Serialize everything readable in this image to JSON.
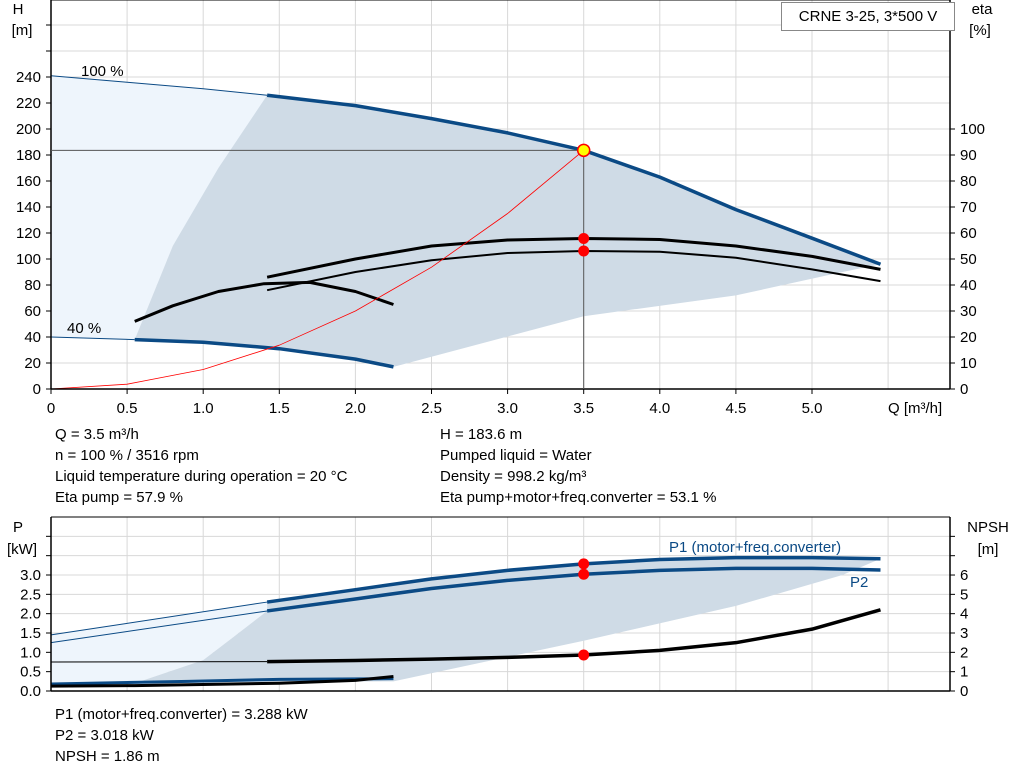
{
  "title_box": "CRNE 3-25, 3*500 V",
  "chart_data": [
    {
      "type": "line",
      "name_area": "qh",
      "xlabel": "Q [m³/h]",
      "ylabel_left": [
        "H",
        "[m]"
      ],
      "ylabel_right": [
        "eta",
        "[%]"
      ],
      "xlim": [
        0,
        5.9
      ],
      "ylim_left": [
        0,
        300
      ],
      "ylim_right": [
        0,
        115
      ],
      "xticks": [
        "0",
        "0.5",
        "1.0",
        "1.5",
        "2.0",
        "2.5",
        "3.0",
        "3.5",
        "4.0",
        "4.5",
        "5.0"
      ],
      "yticks_left": [
        "0",
        "20",
        "40",
        "60",
        "80",
        "100",
        "120",
        "140",
        "160",
        "180",
        "200",
        "220",
        "240"
      ],
      "yticks_right": [
        "0",
        "10",
        "20",
        "30",
        "40",
        "50",
        "60",
        "70",
        "80",
        "90",
        "100"
      ],
      "grid": true,
      "labels": {
        "speed_max": "100 %",
        "speed_min": "40 %"
      },
      "series": [
        {
          "role": "H_100",
          "color": "#0b4a85",
          "points": [
            [
              0,
              241
            ],
            [
              0.5,
              236
            ],
            [
              1.0,
              231
            ],
            [
              1.42,
              226
            ],
            [
              2.0,
              218
            ],
            [
              2.5,
              208
            ],
            [
              3.0,
              197
            ],
            [
              3.5,
              183.6
            ],
            [
              4.0,
              163
            ],
            [
              4.5,
              138
            ],
            [
              5.0,
              116
            ],
            [
              5.45,
              96
            ]
          ],
          "thin_until": 1.42
        },
        {
          "role": "H_40",
          "color": "#0b4a85",
          "points": [
            [
              0,
              40
            ],
            [
              0.55,
              38
            ],
            [
              1.0,
              36
            ],
            [
              1.5,
              31
            ],
            [
              2.0,
              23
            ],
            [
              2.25,
              17
            ]
          ],
          "thin_until": 0.55
        },
        {
          "role": "eta_pump",
          "color": "#000",
          "axis": "right",
          "points": [
            [
              1.42,
              43
            ],
            [
              2.0,
              50
            ],
            [
              2.5,
              55
            ],
            [
              3.0,
              57.3
            ],
            [
              3.5,
              57.9
            ],
            [
              4.0,
              57.5
            ],
            [
              4.5,
              55
            ],
            [
              5.0,
              51
            ],
            [
              5.45,
              46
            ]
          ]
        },
        {
          "role": "eta_total",
          "color": "#000",
          "axis": "right",
          "points": [
            [
              1.42,
              38
            ],
            [
              2.0,
              45
            ],
            [
              2.5,
              49.5
            ],
            [
              3.0,
              52.3
            ],
            [
              3.5,
              53.1
            ],
            [
              4.0,
              52.8
            ],
            [
              4.5,
              50.5
            ],
            [
              5.0,
              46
            ],
            [
              5.45,
              41.5
            ]
          ]
        },
        {
          "role": "eta_pump_40",
          "color": "#000",
          "axis": "right",
          "points": [
            [
              0.55,
              26
            ],
            [
              0.8,
              32
            ],
            [
              1.1,
              37.5
            ],
            [
              1.4,
              40.5
            ],
            [
              1.7,
              41
            ],
            [
              2.0,
              37.5
            ],
            [
              2.25,
              32.5
            ]
          ]
        },
        {
          "role": "system_curve",
          "color": "#ff0000",
          "points": [
            [
              0,
              0
            ],
            [
              0.5,
              3.7
            ],
            [
              1.0,
              15
            ],
            [
              1.5,
              33.7
            ],
            [
              2.0,
              60
            ],
            [
              2.5,
              93.7
            ],
            [
              3.0,
              135
            ],
            [
              3.5,
              183.6
            ]
          ]
        }
      ],
      "operating_point": {
        "Q": 3.5,
        "H": 183.6,
        "eta_pump": 57.9,
        "eta_total": 53.1
      },
      "operating_area": [
        [
          1.42,
          226
        ],
        [
          2.0,
          218
        ],
        [
          2.5,
          208
        ],
        [
          3.0,
          197
        ],
        [
          3.5,
          183.6
        ],
        [
          4.0,
          163
        ],
        [
          4.5,
          138
        ],
        [
          5.0,
          116
        ],
        [
          5.45,
          96
        ],
        [
          5.2,
          90
        ],
        [
          4.5,
          72
        ],
        [
          3.5,
          56
        ],
        [
          2.25,
          17
        ],
        [
          2.0,
          23
        ],
        [
          1.5,
          31
        ],
        [
          1.0,
          36
        ],
        [
          0.55,
          38
        ],
        [
          0.8,
          110
        ],
        [
          1.1,
          170
        ],
        [
          1.42,
          226
        ]
      ]
    },
    {
      "type": "line",
      "name_area": "power",
      "ylabel_left": [
        "P",
        "[kW]"
      ],
      "ylabel_right": [
        "NPSH",
        "[m]"
      ],
      "xlim": [
        0,
        5.9
      ],
      "ylim_left": [
        0,
        4.5
      ],
      "ylim_right": [
        0,
        9
      ],
      "yticks_left": [
        "0.0",
        "0.5",
        "1.0",
        "1.5",
        "2.0",
        "2.5",
        "3.0"
      ],
      "yticks_right": [
        "0",
        "1",
        "2",
        "3",
        "4",
        "5",
        "6"
      ],
      "labels": {
        "p1": "P1 (motor+freq.converter)",
        "p2": "P2"
      },
      "series": [
        {
          "role": "P1",
          "color": "#0b4a85",
          "points": [
            [
              0,
              1.45
            ],
            [
              1.42,
              2.3
            ],
            [
              2.0,
              2.62
            ],
            [
              2.5,
              2.9
            ],
            [
              3.0,
              3.12
            ],
            [
              3.5,
              3.288
            ],
            [
              4.0,
              3.4
            ],
            [
              4.5,
              3.45
            ],
            [
              5.0,
              3.45
            ],
            [
              5.45,
              3.42
            ]
          ],
          "thin_until": 1.42
        },
        {
          "role": "P2",
          "color": "#0b4a85",
          "points": [
            [
              0,
              1.25
            ],
            [
              1.42,
              2.07
            ],
            [
              2.0,
              2.38
            ],
            [
              2.5,
              2.65
            ],
            [
              3.0,
              2.86
            ],
            [
              3.5,
              3.018
            ],
            [
              4.0,
              3.12
            ],
            [
              4.5,
              3.17
            ],
            [
              5.0,
              3.17
            ],
            [
              5.45,
              3.13
            ]
          ],
          "thin_until": 1.42
        },
        {
          "role": "NPSH",
          "color": "#000",
          "axis": "right",
          "points": [
            [
              0,
              1.5
            ],
            [
              1.42,
              1.52
            ],
            [
              2.0,
              1.58
            ],
            [
              2.5,
              1.65
            ],
            [
              3.0,
              1.74
            ],
            [
              3.5,
              1.86
            ],
            [
              4.0,
              2.1
            ],
            [
              4.5,
              2.5
            ],
            [
              5.0,
              3.2
            ],
            [
              5.45,
              4.2
            ]
          ],
          "thin_until": 1.42
        },
        {
          "role": "P1_40",
          "color": "#0b4a85",
          "points": [
            [
              0,
              0.18
            ],
            [
              0.9,
              0.25
            ],
            [
              1.5,
              0.3
            ],
            [
              2.25,
              0.32
            ]
          ]
        },
        {
          "role": "NPSH_40",
          "color": "#000",
          "axis": "right",
          "points": [
            [
              0,
              0.25
            ],
            [
              0.55,
              0.28
            ],
            [
              1.5,
              0.4
            ],
            [
              2.0,
              0.55
            ],
            [
              2.25,
              0.75
            ]
          ]
        }
      ],
      "operating_point": {
        "Q": 3.5,
        "P1": 3.288,
        "P2": 3.018,
        "NPSH": 1.86
      },
      "operating_area": [
        [
          1.42,
          2.3
        ],
        [
          2.0,
          2.62
        ],
        [
          2.5,
          2.9
        ],
        [
          3.0,
          3.12
        ],
        [
          3.5,
          3.288
        ],
        [
          4.0,
          3.4
        ],
        [
          4.5,
          3.45
        ],
        [
          5.0,
          3.45
        ],
        [
          5.45,
          3.42
        ],
        [
          5.2,
          3.0
        ],
        [
          4.5,
          2.2
        ],
        [
          3.5,
          1.3
        ],
        [
          2.25,
          0.25
        ],
        [
          1.0,
          0.22
        ],
        [
          0.55,
          0.2
        ],
        [
          1.0,
          0.8
        ],
        [
          1.2,
          1.4
        ],
        [
          1.42,
          2.07
        ]
      ]
    }
  ],
  "info_top_left": [
    "Q = 3.5 m³/h",
    "n = 100 % / 3516 rpm",
    "Liquid temperature during operation = 20 °C",
    "Eta pump = 57.9 %"
  ],
  "info_top_right": [
    "H = 183.6 m",
    "Pumped liquid = Water",
    "Density = 998.2 kg/m³",
    "Eta pump+motor+freq.converter = 53.1 %"
  ],
  "info_bottom": [
    "P1 (motor+freq.converter) = 3.288 kW",
    "P2 = 3.018 kW",
    "NPSH = 1.86 m"
  ]
}
